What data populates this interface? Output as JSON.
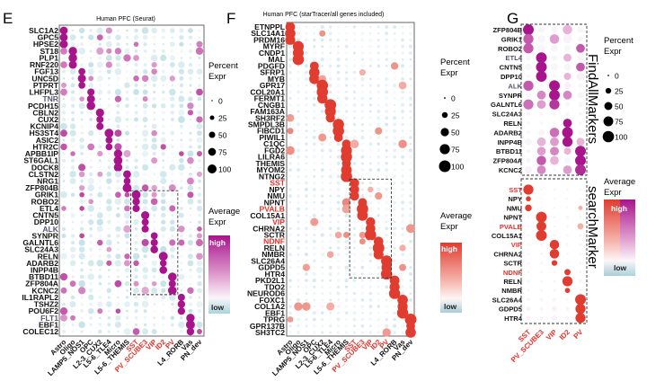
{
  "figure": {
    "panels": [
      "E",
      "F",
      "G"
    ]
  },
  "colors": {
    "seurat_high": "#a8148c",
    "seurat_low": "#b9dde3",
    "startracer_high": "#e03c30",
    "startracer_low": "#b9d7e0",
    "highlight_label": "#e8322a",
    "dim_label": "#555577"
  },
  "chart_data": [
    {
      "type": "scatter",
      "subtype": "dotplot",
      "panel": "E",
      "title": "Human PFC (Seurat)",
      "xlabel": "",
      "ylabel": "",
      "categories": [
        "Astro",
        "Oligo",
        "LAMP5_NOS1",
        "OPC",
        "L2-3_CUX2",
        "L5-6_TLE4",
        "Micro",
        "L5-6_THEMIS",
        "SST",
        "PV_SCUBE3",
        "VIP",
        "ID2",
        "PV",
        "L4_RORB",
        "Vas",
        "PN_dev"
      ],
      "highlighted_categories": [
        "SST",
        "PV_SCUBE3",
        "VIP",
        "ID2",
        "PV"
      ],
      "genes": [
        "SLC1A2",
        "GPC5",
        "HPSE2",
        "ST18",
        "PLP1",
        "RNF220",
        "FGF13",
        "UNC5D",
        "PTPRT",
        "LHFPL3",
        "TNR",
        "PCDH15",
        "CBLN2",
        "CUX2",
        "KCNIP4",
        "HS3ST4",
        "ASIC2",
        "HTR2C",
        "APBB1IP",
        "ST6GAL1",
        "DOCK8",
        "CLSTN2",
        "NRG1",
        "ZFP804B",
        "GRIK1",
        "ROBO2",
        "ETL4",
        "CNTN5",
        "DPP10",
        "ALK",
        "SYNPR",
        "GALNTL6",
        "SLC24A3",
        "RELN",
        "ADARB2",
        "INPP4B",
        "BTBD11",
        "ZFP804A",
        "KCNC2",
        "IL1RAPL2",
        "TSHZ2",
        "POU6F2",
        "FLT1",
        "EBF1",
        "COLEC12"
      ],
      "dim_genes": [
        "TNR",
        "ALK",
        "FLT1"
      ],
      "boxed_region": {
        "genes_from": "GRIK1",
        "genes_to": "KCNC2",
        "categories_from": "SST",
        "categories_to": "PV"
      },
      "marker_assignment": [
        0,
        0,
        0,
        1,
        1,
        1,
        2,
        2,
        2,
        3,
        3,
        3,
        4,
        4,
        4,
        5,
        5,
        5,
        6,
        6,
        6,
        7,
        7,
        7,
        8,
        8,
        8,
        9,
        9,
        9,
        10,
        10,
        10,
        11,
        11,
        11,
        12,
        12,
        12,
        13,
        13,
        13,
        14,
        14,
        14
      ],
      "legend_size": {
        "title": "Percent\nExpr",
        "values": [
          0,
          25,
          50,
          75,
          100
        ]
      },
      "legend_color": {
        "title": "Average\nExpr",
        "high": "high",
        "low": "low"
      }
    },
    {
      "type": "scatter",
      "subtype": "dotplot",
      "panel": "F",
      "title": "Human PFC (starTracer/all genes included)",
      "xlabel": "",
      "ylabel": "",
      "categories": [
        "Astro",
        "Oligo",
        "LAMP5_NOS1",
        "OPC",
        "L2-3_CUX2",
        "L5-6_TLE4",
        "Micro",
        "L5-6_THEMIS",
        "SST",
        "PV_SCUBE3",
        "VIP",
        "ID2",
        "PV",
        "L4_RORB",
        "Vas",
        "PN_dev"
      ],
      "highlighted_categories": [
        "SST",
        "PV_SCUBE3",
        "VIP",
        "ID2",
        "PV"
      ],
      "genes": [
        "ETNPPL",
        "SLC14A1",
        "PRDM16",
        "MYRF",
        "CNDP1",
        "MAL",
        "PDGFD",
        "SFRP1",
        "MYB",
        "GPR17",
        "COL20A1",
        "FERMT1",
        "CNGB1",
        "FAM163A",
        "SH3RF2",
        "SMPDL3B",
        "FIBCD1",
        "PIWIL1",
        "C1QC",
        "FGD2",
        "LILRA6",
        "THEMIS",
        "MYOM2",
        "NTNG2",
        "SST",
        "NPY",
        "NMU",
        "NPNT",
        "PVALB",
        "COL15A1",
        "VIP",
        "CHRNA2",
        "SCTR",
        "NDNF",
        "RELN",
        "NMBR",
        "SLC26A4",
        "GDPD5",
        "HTR4",
        "PKD2L1",
        "TDO2",
        "NEUROD6",
        "FOXC1",
        "COL1A2",
        "EBF1",
        "TPRG",
        "GPR137B",
        "SH3TC2"
      ],
      "highlighted_genes": [
        "SST",
        "PVALB",
        "VIP",
        "NDNF"
      ],
      "boxed_region": {
        "genes_from": "SST",
        "genes_to": "HTR4",
        "categories_from": "SST",
        "categories_to": "PV"
      },
      "marker_assignment": [
        0,
        0,
        0,
        1,
        1,
        1,
        3,
        3,
        3,
        4,
        4,
        4,
        5,
        5,
        5,
        6,
        6,
        6,
        7,
        7,
        7,
        7,
        7,
        7,
        8,
        8,
        8,
        9,
        9,
        9,
        10,
        10,
        10,
        11,
        11,
        11,
        12,
        12,
        12,
        13,
        13,
        13,
        14,
        14,
        14,
        15,
        15,
        15
      ],
      "legend_size": {
        "title": "Percent\nExpr",
        "values": [
          0,
          25,
          50,
          75,
          100
        ]
      },
      "legend_color": {
        "title": "Average\nExpr",
        "high": "high",
        "low": "low"
      }
    },
    {
      "type": "scatter",
      "subtype": "dotplot",
      "panel": "G",
      "title": "",
      "categories": [
        "SST",
        "PV_SCUBE3",
        "VIP",
        "ID2",
        "PV"
      ],
      "groups": [
        {
          "name": "FindAllMarkers",
          "genes": [
            "ZFP804B",
            "GRIK1",
            "ROBO2",
            "ETL4",
            "CNTN5",
            "DPP10",
            "ALK",
            "SYNPR",
            "GALNTL6",
            "SLC24A3",
            "RELN",
            "ADARB2",
            "INPP4B",
            "BTBD11",
            "ZFP804A",
            "KCNC2"
          ],
          "dim_genes": [
            "ETL4",
            "ALK"
          ],
          "values": [
            [
              [
                90,
                1.0
              ],
              [
                30,
                0.1
              ],
              [
                30,
                0.1
              ],
              [
                70,
                0.3
              ],
              [
                30,
                0.1
              ]
            ],
            [
              [
                80,
                0.7
              ],
              [
                50,
                0.05
              ],
              [
                70,
                0.4
              ],
              [
                60,
                0.2
              ],
              [
                20,
                0.1
              ]
            ],
            [
              [
                80,
                0.7
              ],
              [
                40,
                0.1
              ],
              [
                40,
                0.1
              ],
              [
                30,
                0.05
              ],
              [
                60,
                0.7
              ]
            ],
            [
              [
                20,
                0.1
              ],
              [
                90,
                1.0
              ],
              [
                20,
                0.1
              ],
              [
                50,
                0.3
              ],
              [
                30,
                0.15
              ]
            ],
            [
              [
                40,
                0.05
              ],
              [
                90,
                1.0
              ],
              [
                40,
                0.05
              ],
              [
                40,
                0.1
              ],
              [
                60,
                0.7
              ]
            ],
            [
              [
                10,
                0.1
              ],
              [
                90,
                1.0
              ],
              [
                10,
                0.05
              ],
              [
                40,
                0.3
              ],
              [
                50,
                0.2
              ]
            ],
            [
              [
                80,
                0.7
              ],
              [
                10,
                0.05
              ],
              [
                90,
                1.0
              ],
              [
                40,
                0.2
              ],
              [
                20,
                0.05
              ]
            ],
            [
              [
                20,
                0.1
              ],
              [
                60,
                0.5
              ],
              [
                90,
                1.0
              ],
              [
                60,
                0.5
              ],
              [
                30,
                0.1
              ]
            ],
            [
              [
                80,
                0.6
              ],
              [
                60,
                0.4
              ],
              [
                80,
                0.85
              ],
              [
                20,
                0.05
              ],
              [
                20,
                0.05
              ]
            ],
            [
              [
                10,
                0.2
              ],
              [
                10,
                0.05
              ],
              [
                10,
                0.05
              ],
              [
                10,
                0.05
              ],
              [
                10,
                0.05
              ]
            ],
            [
              [
                10,
                0.05
              ],
              [
                10,
                0.05
              ],
              [
                10,
                0.05
              ],
              [
                60,
                1.0
              ],
              [
                10,
                0.05
              ]
            ],
            [
              [
                10,
                0.05
              ],
              [
                30,
                0.1
              ],
              [
                70,
                0.6
              ],
              [
                90,
                1.0
              ],
              [
                20,
                0.05
              ]
            ],
            [
              [
                40,
                0.1
              ],
              [
                60,
                0.3
              ],
              [
                60,
                0.4
              ],
              [
                80,
                1.0
              ],
              [
                50,
                0.3
              ]
            ],
            [
              [
                10,
                0.2
              ],
              [
                60,
                0.4
              ],
              [
                60,
                0.5
              ],
              [
                40,
                0.3
              ],
              [
                90,
                1.0
              ]
            ],
            [
              [
                20,
                0.1
              ],
              [
                70,
                0.7
              ],
              [
                60,
                0.3
              ],
              [
                30,
                0.05
              ],
              [
                90,
                1.0
              ]
            ],
            [
              [
                40,
                0.2
              ],
              [
                60,
                0.5
              ],
              [
                10,
                0.05
              ],
              [
                60,
                0.4
              ],
              [
                90,
                0.9
              ]
            ]
          ]
        },
        {
          "name": "searchMarker",
          "genes": [
            "SST",
            "NPY",
            "NMU",
            "NPNT",
            "PVALB",
            "COL15A1",
            "VIP",
            "CHRNA2",
            "SCTR",
            "NDNF",
            "RELN",
            "NMBR",
            "SLC26A4",
            "GDPD5",
            "HTR4"
          ],
          "highlighted_genes": [
            "SST",
            "PVALB",
            "VIP",
            "NDNF"
          ],
          "values": [
            [
              [
                80,
                1.0
              ],
              [
                5,
                0.0
              ],
              [
                5,
                0.0
              ],
              [
                5,
                0.0
              ],
              [
                5,
                0.0
              ]
            ],
            [
              [
                20,
                1.0
              ],
              [
                0,
                0.0
              ],
              [
                0,
                0.0
              ],
              [
                0,
                0.0
              ],
              [
                0,
                0.0
              ]
            ],
            [
              [
                35,
                1.0
              ],
              [
                0,
                0.0
              ],
              [
                0,
                0.0
              ],
              [
                0,
                0.0
              ],
              [
                15,
                0.3
              ]
            ],
            [
              [
                5,
                0.0
              ],
              [
                90,
                1.0
              ],
              [
                5,
                0.0
              ],
              [
                10,
                0.1
              ],
              [
                5,
                0.0
              ]
            ],
            [
              [
                5,
                0.0
              ],
              [
                75,
                1.0
              ],
              [
                5,
                0.0
              ],
              [
                5,
                0.0
              ],
              [
                30,
                0.3
              ]
            ],
            [
              [
                5,
                0.0
              ],
              [
                90,
                1.0
              ],
              [
                5,
                0.0
              ],
              [
                5,
                0.0
              ],
              [
                5,
                0.0
              ]
            ],
            [
              [
                5,
                0.0
              ],
              [
                5,
                0.0
              ],
              [
                70,
                1.0
              ],
              [
                5,
                0.0
              ],
              [
                5,
                0.0
              ]
            ],
            [
              [
                5,
                0.0
              ],
              [
                5,
                0.0
              ],
              [
                70,
                1.0
              ],
              [
                5,
                0.0
              ],
              [
                5,
                0.0
              ]
            ],
            [
              [
                5,
                0.0
              ],
              [
                5,
                0.0
              ],
              [
                25,
                1.0
              ],
              [
                5,
                0.0
              ],
              [
                5,
                0.0
              ]
            ],
            [
              [
                5,
                0.0
              ],
              [
                5,
                0.0
              ],
              [
                5,
                0.0
              ],
              [
                30,
                1.0
              ],
              [
                5,
                0.0
              ]
            ],
            [
              [
                15,
                0.05
              ],
              [
                5,
                0.0
              ],
              [
                5,
                0.0
              ],
              [
                80,
                1.0
              ],
              [
                10,
                0.0
              ]
            ],
            [
              [
                5,
                0.0
              ],
              [
                5,
                0.0
              ],
              [
                5,
                0.0
              ],
              [
                20,
                1.0
              ],
              [
                5,
                0.0
              ]
            ],
            [
              [
                10,
                0.05
              ],
              [
                10,
                0.0
              ],
              [
                10,
                0.0
              ],
              [
                5,
                0.0
              ],
              [
                90,
                1.0
              ]
            ],
            [
              [
                15,
                0.2
              ],
              [
                10,
                0.0
              ],
              [
                20,
                0.2
              ],
              [
                10,
                0.1
              ],
              [
                80,
                1.0
              ]
            ],
            [
              [
                15,
                0.2
              ],
              [
                10,
                0.0
              ],
              [
                20,
                0.2
              ],
              [
                10,
                0.0
              ],
              [
                80,
                1.0
              ]
            ]
          ]
        }
      ],
      "legend_size": {
        "title": "Percent\nExpr",
        "values": [
          0,
          25,
          50,
          75,
          100
        ]
      },
      "legend_color": {
        "title": "Average\nExpr",
        "high": "high",
        "low": "low"
      }
    }
  ]
}
